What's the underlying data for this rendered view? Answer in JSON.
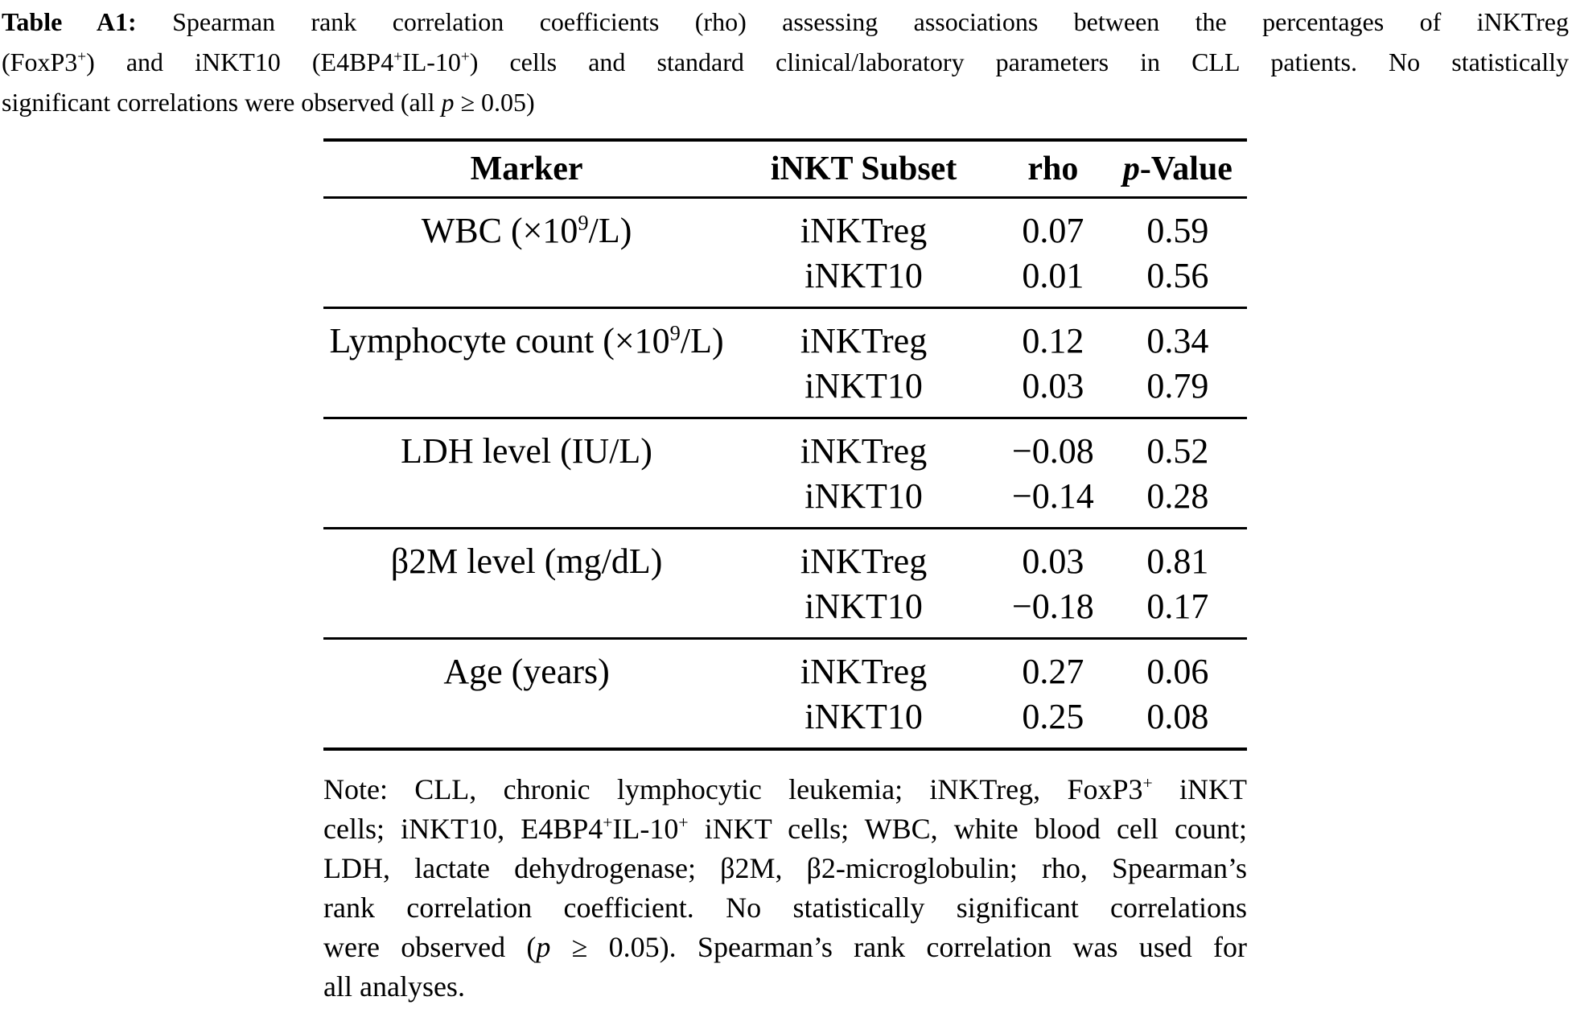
{
  "caption": {
    "lines": [
      {
        "segments": [
          {
            "t": "Table A1:",
            "s": "b"
          },
          {
            "t": " Spearman rank correlation coefficients (rho) assessing associations between the percentages of iNKTreg",
            "s": ""
          }
        ]
      },
      {
        "segments": [
          {
            "t": "(FoxP3",
            "s": ""
          },
          {
            "t": "+",
            "s": "sup"
          },
          {
            "t": ") and iNKT10 (E4BP4",
            "s": ""
          },
          {
            "t": "+",
            "s": "sup"
          },
          {
            "t": "IL-10",
            "s": ""
          },
          {
            "t": "+",
            "s": "sup"
          },
          {
            "t": ") cells and standard clinical/laboratory parameters in CLL patients. No statistically",
            "s": ""
          }
        ]
      },
      {
        "segments": [
          {
            "t": "significant correlations were observed (all ",
            "s": ""
          },
          {
            "t": "p",
            "s": "i"
          },
          {
            "t": " ≥ 0.05)",
            "s": ""
          }
        ]
      }
    ]
  },
  "table": {
    "headers": {
      "marker": "Marker",
      "subset": "iNKT Subset",
      "rho": "rho",
      "p_italic": "p",
      "p_rest": "-Value"
    },
    "groups": [
      {
        "marker": [
          {
            "t": "WBC (×10",
            "s": ""
          },
          {
            "t": "9",
            "s": "sup"
          },
          {
            "t": "/L)",
            "s": ""
          }
        ],
        "rows": [
          {
            "subset": "iNKTreg",
            "rho": "0.07",
            "p": "0.59"
          },
          {
            "subset": "iNKT10",
            "rho": "0.01",
            "p": "0.56"
          }
        ]
      },
      {
        "marker": [
          {
            "t": "Lymphocyte count (×10",
            "s": ""
          },
          {
            "t": "9",
            "s": "sup"
          },
          {
            "t": "/L)",
            "s": ""
          }
        ],
        "rows": [
          {
            "subset": "iNKTreg",
            "rho": "0.12",
            "p": "0.34"
          },
          {
            "subset": "iNKT10",
            "rho": "0.03",
            "p": "0.79"
          }
        ]
      },
      {
        "marker": [
          {
            "t": "LDH level (IU/L)",
            "s": ""
          }
        ],
        "rows": [
          {
            "subset": "iNKTreg",
            "rho": "−0.08",
            "p": "0.52"
          },
          {
            "subset": "iNKT10",
            "rho": "−0.14",
            "p": "0.28"
          }
        ]
      },
      {
        "marker": [
          {
            "t": "β2M level (mg/dL)",
            "s": ""
          }
        ],
        "rows": [
          {
            "subset": "iNKTreg",
            "rho": "0.03",
            "p": "0.81"
          },
          {
            "subset": "iNKT10",
            "rho": "−0.18",
            "p": "0.17"
          }
        ]
      },
      {
        "marker": [
          {
            "t": "Age (years)",
            "s": ""
          }
        ],
        "rows": [
          {
            "subset": "iNKTreg",
            "rho": "0.27",
            "p": "0.06"
          },
          {
            "subset": "iNKT10",
            "rho": "0.25",
            "p": "0.08"
          }
        ]
      }
    ]
  },
  "note": {
    "lines": [
      {
        "segments": [
          {
            "t": "Note: CLL, chronic lymphocytic leukemia; iNKTreg, FoxP3",
            "s": ""
          },
          {
            "t": "+",
            "s": "sup"
          },
          {
            "t": " iNKT",
            "s": ""
          }
        ]
      },
      {
        "segments": [
          {
            "t": "cells; iNKT10, E4BP4",
            "s": ""
          },
          {
            "t": "+",
            "s": "sup"
          },
          {
            "t": "IL-10",
            "s": ""
          },
          {
            "t": "+",
            "s": "sup"
          },
          {
            "t": " iNKT cells; WBC, white blood cell count;",
            "s": ""
          }
        ]
      },
      {
        "segments": [
          {
            "t": "LDH, lactate dehydrogenase; β2M, β2-microglobulin; rho, Spearman’s",
            "s": ""
          }
        ]
      },
      {
        "segments": [
          {
            "t": "rank correlation coefficient. No statistically significant correlations",
            "s": ""
          }
        ]
      },
      {
        "segments": [
          {
            "t": "were observed (",
            "s": ""
          },
          {
            "t": "p",
            "s": "i"
          },
          {
            "t": " ≥ 0.05). Spearman’s rank correlation was used for",
            "s": ""
          }
        ]
      },
      {
        "segments": [
          {
            "t": "all analyses.",
            "s": ""
          }
        ]
      }
    ]
  },
  "chart_data": {
    "type": "table",
    "title": "Table A1: Spearman rank correlation coefficients (rho) assessing associations between the percentages of iNKTreg (FoxP3+) and iNKT10 (E4BP4+IL-10+) cells and standard clinical/laboratory parameters in CLL patients. No statistically significant correlations were observed (all p ≥ 0.05)",
    "columns": [
      "Marker",
      "iNKT Subset",
      "rho",
      "p-Value"
    ],
    "rows": [
      [
        "WBC (×10⁹/L)",
        "iNKTreg",
        0.07,
        0.59
      ],
      [
        "WBC (×10⁹/L)",
        "iNKT10",
        0.01,
        0.56
      ],
      [
        "Lymphocyte count (×10⁹/L)",
        "iNKTreg",
        0.12,
        0.34
      ],
      [
        "Lymphocyte count (×10⁹/L)",
        "iNKT10",
        0.03,
        0.79
      ],
      [
        "LDH level (IU/L)",
        "iNKTreg",
        -0.08,
        0.52
      ],
      [
        "LDH level (IU/L)",
        "iNKT10",
        -0.14,
        0.28
      ],
      [
        "β2M level (mg/dL)",
        "iNKTreg",
        0.03,
        0.81
      ],
      [
        "β2M level (mg/dL)",
        "iNKT10",
        -0.18,
        0.17
      ],
      [
        "Age (years)",
        "iNKTreg",
        0.27,
        0.06
      ],
      [
        "Age (years)",
        "iNKT10",
        0.25,
        0.08
      ]
    ]
  }
}
